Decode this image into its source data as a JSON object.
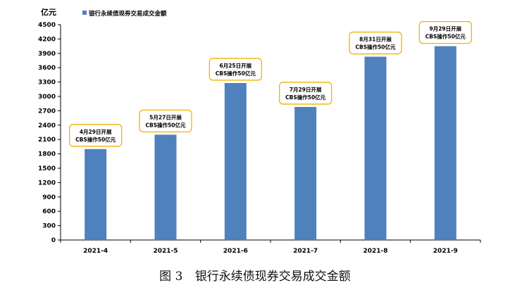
{
  "chart_data": {
    "type": "bar",
    "y_unit": "亿元",
    "legend": "银行永续债现券交易成交金额",
    "legend_position": "top-left",
    "categories": [
      "2021-4",
      "2021-5",
      "2021-6",
      "2021-7",
      "2021-8",
      "2021-9"
    ],
    "series": [
      {
        "name": "银行永续债现券交易成交金额",
        "values": [
          1900,
          2200,
          3280,
          2780,
          3830,
          4050
        ]
      }
    ],
    "annotations": [
      {
        "line1": "4月29日开展",
        "line2": "CBS操作50亿元"
      },
      {
        "line1": "5月27日开展",
        "line2": "CBS操作50亿元"
      },
      {
        "line1": "6月25日开展",
        "line2": "CBS操作50亿元"
      },
      {
        "line1": "7月29日开展",
        "line2": "CBS操作50亿元"
      },
      {
        "line1": "8月31日开展",
        "line2": "CBS操作50亿元"
      },
      {
        "line1": "9月29日开展",
        "line2": "CBS操作50亿元"
      }
    ],
    "y_ticks": [
      "0",
      "300",
      "600",
      "900",
      "1200",
      "1500",
      "1800",
      "2100",
      "2400",
      "2700",
      "3000",
      "3300",
      "3600",
      "3900",
      "4200",
      "4500"
    ],
    "ylim": [
      0,
      4500
    ],
    "grid": false,
    "colors": {
      "bar": "#4f81bd",
      "annotation_border": "#f0b400",
      "axis": "#000000"
    }
  },
  "caption": {
    "figure_no": "图 3",
    "title": "银行永续债现券交易成交金额"
  }
}
